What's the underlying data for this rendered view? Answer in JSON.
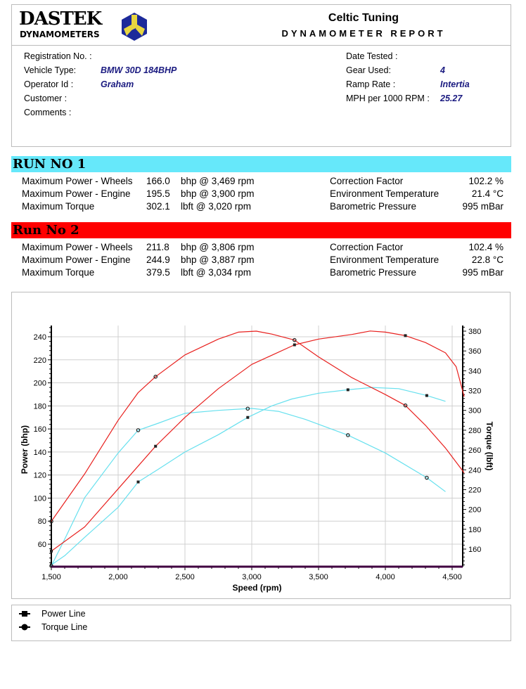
{
  "header": {
    "logo_line1": "DASTEK",
    "logo_line2": "DYNAMOMETERS",
    "company": "Celtic Tuning",
    "report_title": "DYNAMOMETER REPORT"
  },
  "info": {
    "left": [
      {
        "label": "Registration No. :",
        "value": ""
      },
      {
        "label": "Vehicle Type:",
        "value": "BMW 30D 184BHP"
      },
      {
        "label": "Operator Id :",
        "value": "Graham"
      },
      {
        "label": "Customer :",
        "value": ""
      },
      {
        "label": "Comments :",
        "value": ""
      }
    ],
    "right": [
      {
        "label": "Date Tested :",
        "value": ""
      },
      {
        "label": "Gear Used:",
        "value": "4"
      },
      {
        "label": "Ramp Rate :",
        "value": "Intertia"
      },
      {
        "label": "MPH per 1000 RPM :",
        "value": "25.27"
      }
    ]
  },
  "runs": [
    {
      "title": "RUN NO 1",
      "color": "#66e8fa",
      "rows": [
        {
          "label": "Maximum Power - Wheels",
          "value": "166.0",
          "unit": "bhp @ 3,469 rpm",
          "elabel": "Correction Factor",
          "evalue": "102.2 %"
        },
        {
          "label": "Maximum Power - Engine",
          "value": "195.5",
          "unit": "bhp @ 3,900 rpm",
          "elabel": "Environment Temperature",
          "evalue": "21.4 °C"
        },
        {
          "label": "Maximum Torque",
          "value": "302.1",
          "unit": "lbft @ 3,020 rpm",
          "elabel": "Barometric Pressure",
          "evalue": "995 mBar"
        }
      ]
    },
    {
      "title": "Run No 2",
      "color": "#ff0000",
      "rows": [
        {
          "label": "Maximum Power - Wheels",
          "value": "211.8",
          "unit": "bhp @ 3,806 rpm",
          "elabel": "Correction Factor",
          "evalue": "102.4 %"
        },
        {
          "label": "Maximum Power - Engine",
          "value": "244.9",
          "unit": "bhp @ 3,887 rpm",
          "elabel": "Environment Temperature",
          "evalue": "22.8 °C"
        },
        {
          "label": "Maximum Torque",
          "value": "379.5",
          "unit": "lbft @ 3,034 rpm",
          "elabel": "Barometric Pressure",
          "evalue": "995 mBar"
        }
      ]
    }
  ],
  "chart_data": {
    "type": "line",
    "xlabel": "Speed (rpm)",
    "ylabel": "Power (bhp)",
    "y2label": "Torque (lbft)",
    "xlim": [
      1500,
      4600
    ],
    "ylim": [
      42,
      250
    ],
    "y2lim": [
      142,
      385
    ],
    "grid": true,
    "xticks": [
      "1,500",
      "2,000",
      "2,500",
      "3,000",
      "3,500",
      "4,000",
      "4,500"
    ],
    "yticks": [
      "60",
      "80",
      "100",
      "120",
      "140",
      "160",
      "180",
      "200",
      "220",
      "240"
    ],
    "y2ticks": [
      "160",
      "180",
      "200",
      "220",
      "240",
      "260",
      "280",
      "300",
      "320",
      "340",
      "360",
      "380"
    ],
    "series": [
      {
        "run": 1,
        "kind": "power",
        "color": "#66e0ee",
        "markers": [
          1500,
          2150,
          2970,
          3720,
          4310
        ],
        "points": [
          [
            1500,
            42
          ],
          [
            1600,
            50
          ],
          [
            1750,
            66
          ],
          [
            2000,
            92
          ],
          [
            2150,
            114
          ],
          [
            2300,
            125
          ],
          [
            2500,
            140
          ],
          [
            2750,
            155
          ],
          [
            2970,
            170
          ],
          [
            3150,
            180
          ],
          [
            3300,
            186
          ],
          [
            3500,
            191
          ],
          [
            3720,
            194
          ],
          [
            3900,
            196
          ],
          [
            4100,
            195
          ],
          [
            4310,
            189
          ],
          [
            4450,
            184
          ]
        ]
      },
      {
        "run": 1,
        "kind": "torque",
        "color": "#66e0ee",
        "markers": [
          1500,
          2150,
          2970,
          3720,
          4310
        ],
        "points": [
          [
            1500,
            143
          ],
          [
            1600,
            170
          ],
          [
            1750,
            212
          ],
          [
            2000,
            257
          ],
          [
            2150,
            280
          ],
          [
            2300,
            287
          ],
          [
            2500,
            297
          ],
          [
            2750,
            300
          ],
          [
            3000,
            302
          ],
          [
            3200,
            299
          ],
          [
            3400,
            291
          ],
          [
            3720,
            275
          ],
          [
            4000,
            257
          ],
          [
            4310,
            232
          ],
          [
            4450,
            218
          ]
        ]
      },
      {
        "run": 2,
        "kind": "power",
        "color": "#e8201e",
        "markers": [
          1500,
          2280,
          3320,
          4150
        ],
        "points": [
          [
            1500,
            54
          ],
          [
            1750,
            75
          ],
          [
            2000,
            108
          ],
          [
            2280,
            145
          ],
          [
            2500,
            170
          ],
          [
            2750,
            195
          ],
          [
            3000,
            216
          ],
          [
            3320,
            233
          ],
          [
            3500,
            238
          ],
          [
            3750,
            242
          ],
          [
            3887,
            245
          ],
          [
            4000,
            244
          ],
          [
            4150,
            241
          ],
          [
            4300,
            235
          ],
          [
            4450,
            226
          ],
          [
            4530,
            214
          ],
          [
            4590,
            188
          ]
        ]
      },
      {
        "run": 2,
        "kind": "torque",
        "color": "#e8201e",
        "markers": [
          1500,
          2280,
          3320,
          4150
        ],
        "points": [
          [
            1500,
            188
          ],
          [
            1750,
            236
          ],
          [
            2000,
            290
          ],
          [
            2150,
            318
          ],
          [
            2280,
            334
          ],
          [
            2500,
            356
          ],
          [
            2750,
            372
          ],
          [
            2900,
            379
          ],
          [
            3034,
            380
          ],
          [
            3150,
            377
          ],
          [
            3320,
            371
          ],
          [
            3500,
            354
          ],
          [
            3750,
            333
          ],
          [
            4000,
            316
          ],
          [
            4150,
            305
          ],
          [
            4300,
            285
          ],
          [
            4450,
            262
          ],
          [
            4590,
            237
          ]
        ]
      }
    ]
  },
  "legend": {
    "power": "Power Line",
    "torque": "Torque Line"
  }
}
